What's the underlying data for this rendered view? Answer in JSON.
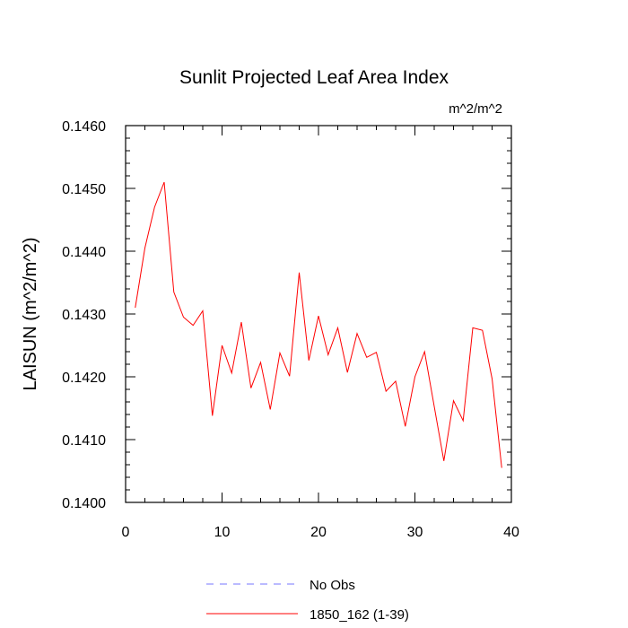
{
  "chart_data": {
    "type": "line",
    "title": "Sunlit Projected Leaf Area Index",
    "units_label": "m^2/m^2",
    "ylabel": "LAISUN  (m^2/m^2)",
    "xlabel": "",
    "xlim": [
      0,
      40
    ],
    "ylim": [
      0.14,
      0.146
    ],
    "x_ticks": [
      0,
      10,
      20,
      30,
      40
    ],
    "x_tick_labels": [
      "0",
      "10",
      "20",
      "30",
      "40"
    ],
    "y_ticks": [
      0.14,
      0.141,
      0.142,
      0.143,
      0.144,
      0.145,
      0.146
    ],
    "y_tick_labels": [
      "0.1400",
      "0.1410",
      "0.1420",
      "0.1430",
      "0.1440",
      "0.1450",
      "0.1460"
    ],
    "grid": false,
    "legend_position": "bottom",
    "series": [
      {
        "name": "No Obs",
        "color": "#7777ff",
        "dash": true,
        "x": [],
        "y": []
      },
      {
        "name": "1850_162 (1-39)",
        "color": "#ff0000",
        "dash": false,
        "x": [
          1,
          2,
          3,
          4,
          5,
          6,
          7,
          8,
          9,
          10,
          11,
          12,
          13,
          14,
          15,
          16,
          17,
          18,
          19,
          20,
          21,
          22,
          23,
          24,
          25,
          26,
          27,
          28,
          29,
          30,
          31,
          32,
          33,
          34,
          35,
          36,
          37,
          38,
          39
        ],
        "y": [
          0.1431,
          0.14405,
          0.1447,
          0.1451,
          0.14335,
          0.14295,
          0.14282,
          0.14305,
          0.14138,
          0.1425,
          0.14206,
          0.14287,
          0.14182,
          0.14223,
          0.14148,
          0.14238,
          0.14201,
          0.14366,
          0.14226,
          0.14297,
          0.14235,
          0.14278,
          0.14207,
          0.14269,
          0.14231,
          0.14239,
          0.14177,
          0.14193,
          0.14121,
          0.142,
          0.1424,
          0.14153,
          0.14066,
          0.14162,
          0.1413,
          0.14278,
          0.14274,
          0.14197,
          0.14055
        ]
      }
    ]
  }
}
